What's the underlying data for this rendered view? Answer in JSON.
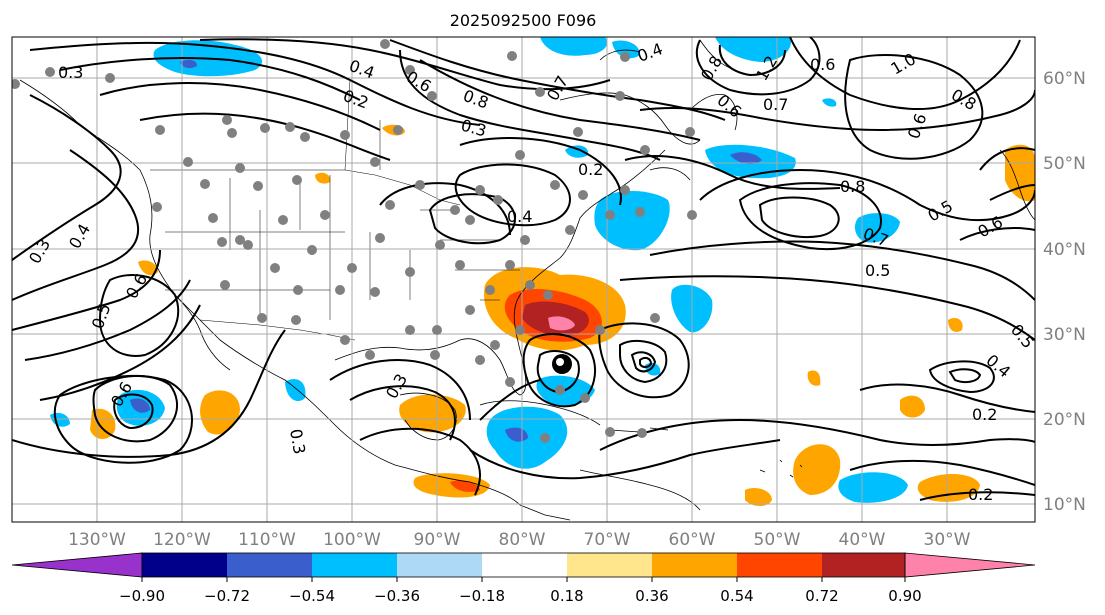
{
  "title": "2025092500 F096",
  "map": {
    "lon_labels": [
      "130°W",
      "120°W",
      "110°W",
      "100°W",
      "90°W",
      "80°W",
      "70°W",
      "60°W",
      "50°W",
      "40°W",
      "30°W"
    ],
    "lat_labels": [
      "60°N",
      "50°N",
      "40°N",
      "30°N",
      "20°N",
      "10°N"
    ]
  },
  "contour_labels": [
    "0.3",
    "0.4",
    "0.2",
    "0.6",
    "0.8",
    "0.3",
    "0.7",
    "0.4",
    "1.2",
    "0.6",
    "1.0",
    "0.8",
    "0.7",
    "0.6",
    "0.8",
    "0.6",
    "0.2",
    "0.4",
    "0.8",
    "0.5",
    "0.6",
    "0.3",
    "0.4",
    "0.5",
    "0.6",
    "0.7",
    "0.5",
    "0.5",
    "0.3",
    "0.6",
    "0.3",
    "0.4",
    "0.2",
    "0.2"
  ],
  "colorbar": {
    "tick_labels": [
      "−0.90",
      "−0.72",
      "−0.54",
      "−0.36",
      "−0.18",
      "0.18",
      "0.36",
      "0.54",
      "0.72",
      "0.90"
    ],
    "colors": [
      "#9932cc",
      "#00008b",
      "#3a5fcd",
      "#00bfff",
      "#add8f6",
      "#ffffff",
      "#ffe58c",
      "#ffa500",
      "#ff4500",
      "#b22222",
      "#ff82ab"
    ]
  }
}
